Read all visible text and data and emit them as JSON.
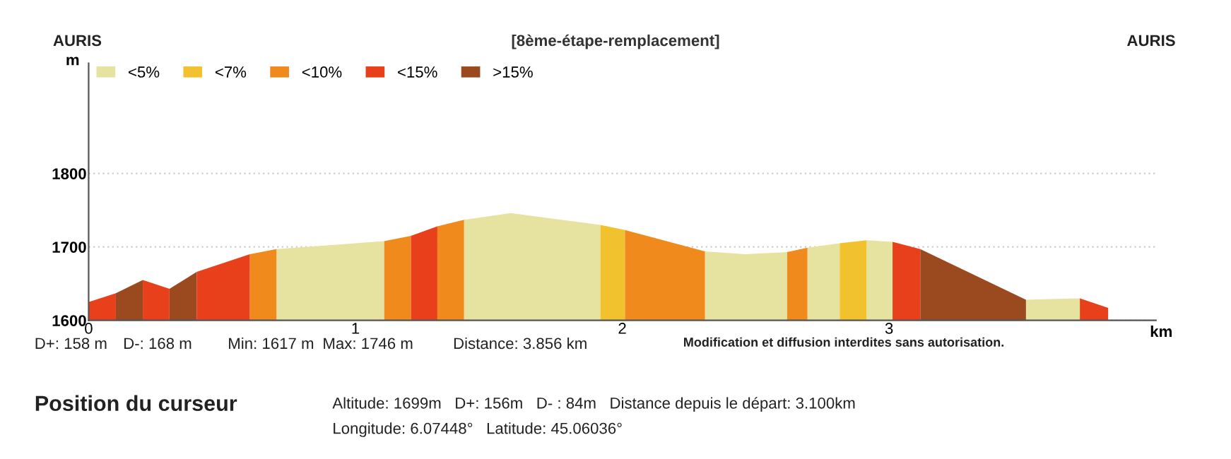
{
  "chart_data": {
    "type": "area",
    "title": "[8ème-étape-remplacement]",
    "xlabel": "km",
    "ylabel": "m",
    "xlim": [
      0,
      4.0
    ],
    "xticks": [
      0,
      1,
      2,
      3
    ],
    "ylim": [
      1600,
      1950
    ],
    "yticks": [
      1600,
      1700,
      1800
    ],
    "grid": "y",
    "legend": "top left",
    "series": [
      {
        "name": "<5%",
        "color": "#e6e29f",
        "x": [
          0.704,
          1.108,
          1.25,
          1.407,
          1.583,
          1.918,
          2.1,
          2.31,
          2.46,
          2.618,
          2.65,
          2.694,
          2.815,
          2.86,
          2.915,
          3.013,
          3.3,
          3.513,
          3.715
        ],
        "values": [
          1697,
          1708,
          null,
          1737,
          1746,
          1730,
          null,
          1694,
          1690,
          1693,
          null,
          1699,
          1705,
          null,
          1709,
          1707,
          null,
          1628,
          1630
        ]
      },
      {
        "name": "<7%",
        "color": "#f2c12e",
        "x": [
          1.918,
          2.01,
          2.4,
          2.815,
          2.915
        ],
        "values": [
          1730,
          1723,
          null,
          1705,
          1709
        ]
      },
      {
        "name": "<10%",
        "color": "#f08a1c",
        "x": [
          0.604,
          0.704,
          0.9,
          1.108,
          1.208,
          1.25,
          1.307,
          1.407,
          1.7,
          2.01,
          2.31,
          2.45,
          2.618,
          2.694
        ],
        "values": [
          1690,
          1697,
          null,
          1708,
          1715,
          null,
          1728,
          1737,
          null,
          1723,
          1694,
          null,
          1693,
          1699
        ]
      },
      {
        "name": "<15%",
        "color": "#e8401a",
        "x": [
          0,
          0.102,
          0.15,
          0.203,
          0.303,
          0.35,
          0.405,
          0.604,
          0.9,
          1.208,
          1.307,
          2.2,
          3.013,
          3.117,
          3.4,
          3.715,
          3.821
        ],
        "values": [
          1625,
          1637,
          null,
          1655,
          1643,
          null,
          1666,
          1690,
          null,
          1715,
          1728,
          null,
          1707,
          1697,
          null,
          1630,
          1617
        ]
      },
      {
        "name": ">15%",
        "color": "#9b4a20",
        "x": [
          0.102,
          0.203,
          0.25,
          0.303,
          0.405,
          1.7,
          3.117,
          3.513
        ],
        "values": [
          1637,
          1655,
          null,
          1643,
          1666,
          null,
          1697,
          1628
        ]
      }
    ],
    "annotations": [
      "AURIS",
      "AURIS",
      "D+: 158 m",
      "D-: 168 m",
      "Min: 1617 m",
      "Max: 1746 m",
      "Distance: 3.856 km",
      "Modification et diffusion interdites sans autorisation.",
      "Position du curseur",
      "Altitude: 1699m   D+: 156m   D- : 84m   Distance depuis le départ: 3.100km",
      "Longitude: 6.07448°   Latitude: 45.06036°"
    ]
  }
}
